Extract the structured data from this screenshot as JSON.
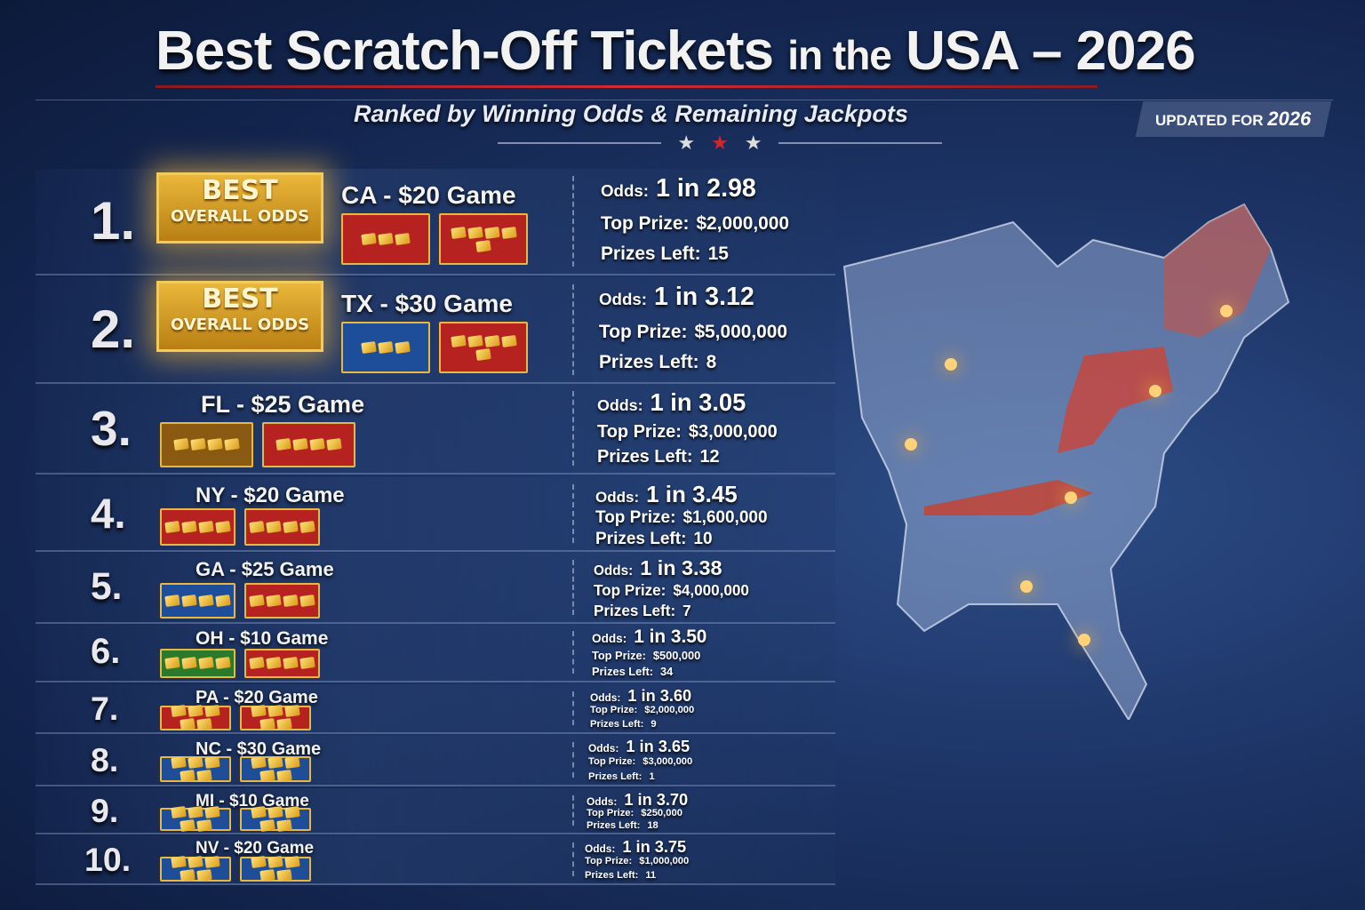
{
  "header": {
    "title_main": "Best Scratch-Off Tickets",
    "title_mid": "in the",
    "title_end": "USA – 2026",
    "subtitle": "Ranked by Winning Odds & Remaining Jackpots",
    "updated_prefix": "UPDATED FOR",
    "updated_year": "2026"
  },
  "labels": {
    "odds": "Odds:",
    "top_prize": "Top Prize:",
    "prizes_left": "Prizes Left:",
    "badge_line1": "BEST",
    "badge_line2": "OVERALL ODDS"
  },
  "colors": {
    "gold": "#e9b73a",
    "red": "#c0262d",
    "blue": "#1e4d9a",
    "green": "#2b7a2b"
  },
  "tickets": [
    {
      "rank": "1.",
      "game": "CA - $20 Game",
      "odds": "1 in 2.98",
      "top_prize": "$2,000,000",
      "prizes_left": "15",
      "badge": true,
      "ticket_colors": [
        "#b5221f",
        "#b5221f"
      ]
    },
    {
      "rank": "2.",
      "game": "TX - $30 Game",
      "odds": "1 in 3.12",
      "top_prize": "$5,000,000",
      "prizes_left": "8",
      "badge": true,
      "ticket_colors": [
        "#1e4d9a",
        "#b5221f"
      ]
    },
    {
      "rank": "3.",
      "game": "FL - $25 Game",
      "odds": "1 in 3.05",
      "top_prize": "$3,000,000",
      "prizes_left": "12",
      "badge": false,
      "ticket_colors": [
        "#8a5a12",
        "#b5221f"
      ]
    },
    {
      "rank": "4.",
      "game": "NY - $20 Game",
      "odds": "1 in 3.45",
      "top_prize": "$1,600,000",
      "prizes_left": "10",
      "badge": false,
      "ticket_colors": [
        "#b5221f",
        "#b5221f"
      ]
    },
    {
      "rank": "5.",
      "game": "GA - $25 Game",
      "odds": "1 in 3.38",
      "top_prize": "$4,000,000",
      "prizes_left": "7",
      "badge": false,
      "ticket_colors": [
        "#1e4d9a",
        "#b5221f"
      ]
    },
    {
      "rank": "6.",
      "game": "OH - $10 Game",
      "odds": "1 in 3.50",
      "top_prize": "$500,000",
      "prizes_left": "34",
      "badge": false,
      "ticket_colors": [
        "#2b7a2b",
        "#b5221f"
      ]
    },
    {
      "rank": "7.",
      "game": "PA - $20 Game",
      "odds": "1 in 3.60",
      "top_prize": "$2,000,000",
      "prizes_left": "9",
      "badge": false,
      "ticket_colors": [
        "#b5221f",
        "#b5221f"
      ]
    },
    {
      "rank": "8.",
      "game": "NC - $30 Game",
      "odds": "1 in 3.65",
      "top_prize": "$3,000,000",
      "prizes_left": "1",
      "badge": false,
      "ticket_colors": [
        "#1e4d9a",
        "#1e4d9a"
      ]
    },
    {
      "rank": "9.",
      "game": "MI - $10 Game",
      "odds": "1 in 3.70",
      "top_prize": "$250,000",
      "prizes_left": "18",
      "badge": false,
      "ticket_colors": [
        "#1e4d9a",
        "#1e4d9a"
      ]
    },
    {
      "rank": "10.",
      "game": "NV - $20 Game",
      "odds": "1 in 3.75",
      "top_prize": "$1,000,000",
      "prizes_left": "11",
      "badge": false,
      "ticket_colors": [
        "#1e4d9a",
        "#1e4d9a"
      ]
    }
  ]
}
